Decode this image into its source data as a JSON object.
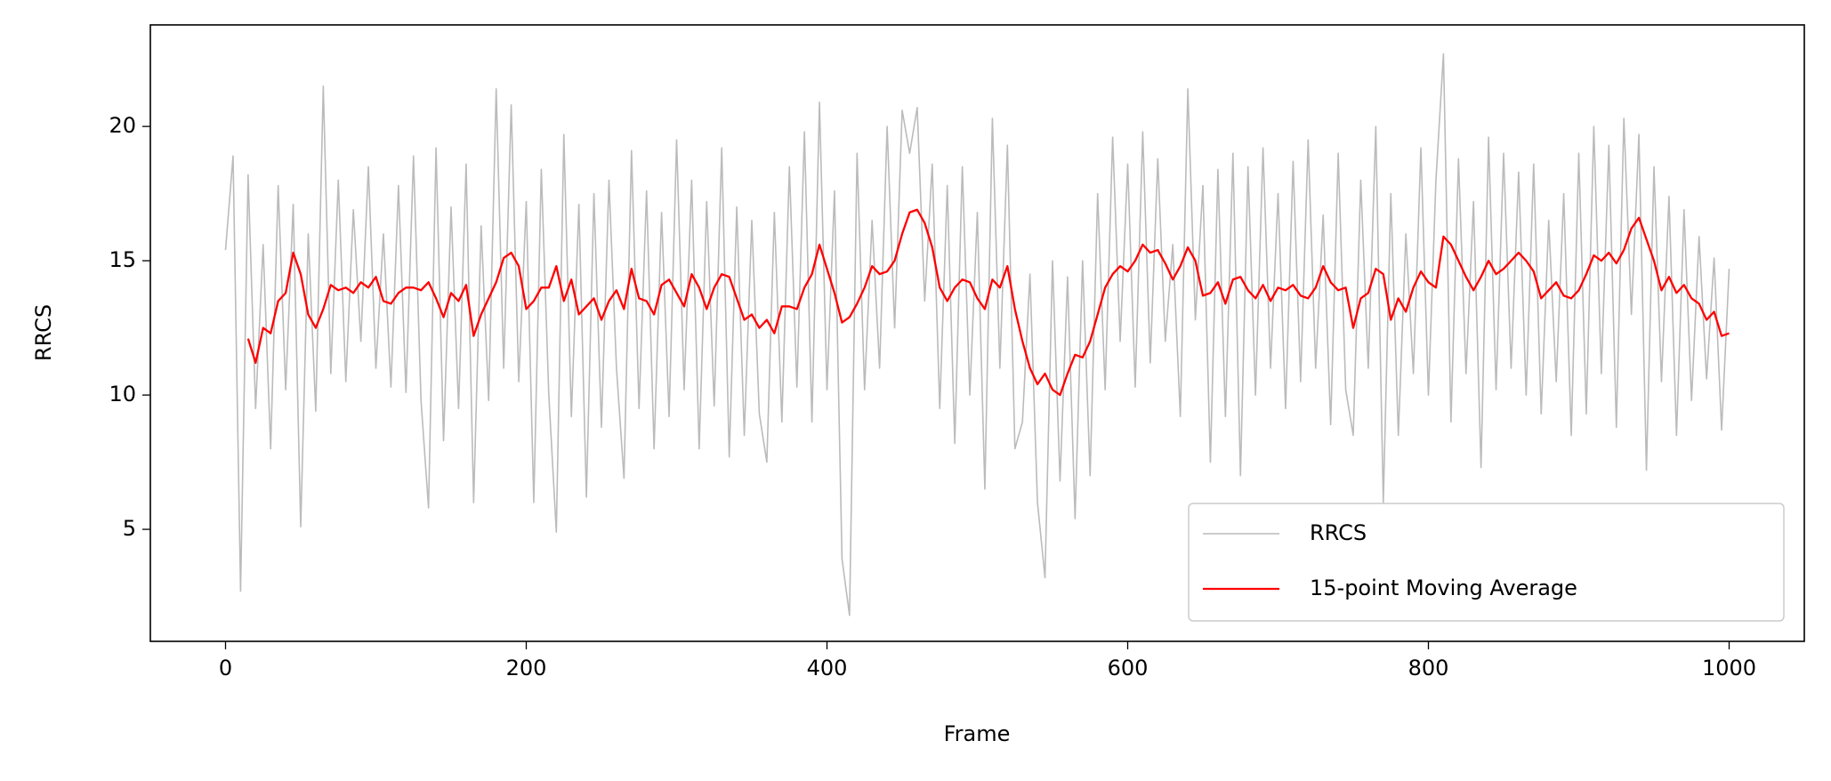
{
  "chart_data": {
    "type": "line",
    "x_label": "Frame",
    "y_label": "RRCS",
    "xlim": [
      -50,
      1050
    ],
    "ylim": [
      0.83,
      23.78
    ],
    "xticks": [
      0,
      200,
      400,
      600,
      800,
      1000
    ],
    "yticks": [
      5,
      10,
      15,
      20
    ],
    "grid": false,
    "legend": "lower right",
    "series": [
      {
        "name": "RRCS",
        "color": "#bbbbbb",
        "x": [
          0,
          5,
          10,
          15,
          20,
          25,
          30,
          35,
          40,
          45,
          50,
          55,
          60,
          65,
          70,
          75,
          80,
          85,
          90,
          95,
          100,
          105,
          110,
          115,
          120,
          125,
          130,
          135,
          140,
          145,
          150,
          155,
          160,
          165,
          170,
          175,
          180,
          185,
          190,
          195,
          200,
          205,
          210,
          215,
          220,
          225,
          230,
          235,
          240,
          245,
          250,
          255,
          260,
          265,
          270,
          275,
          280,
          285,
          290,
          295,
          300,
          305,
          310,
          315,
          320,
          325,
          330,
          335,
          340,
          345,
          350,
          355,
          360,
          365,
          370,
          375,
          380,
          385,
          390,
          395,
          400,
          405,
          410,
          415,
          420,
          425,
          430,
          435,
          440,
          445,
          450,
          455,
          460,
          465,
          470,
          475,
          480,
          485,
          490,
          495,
          500,
          505,
          510,
          515,
          520,
          525,
          530,
          535,
          540,
          545,
          550,
          555,
          560,
          565,
          570,
          575,
          580,
          585,
          590,
          595,
          600,
          605,
          610,
          615,
          620,
          625,
          630,
          635,
          640,
          645,
          650,
          655,
          660,
          665,
          670,
          675,
          680,
          685,
          690,
          695,
          700,
          705,
          710,
          715,
          720,
          725,
          730,
          735,
          740,
          745,
          750,
          755,
          760,
          765,
          770,
          775,
          780,
          785,
          790,
          795,
          800,
          805,
          810,
          815,
          820,
          825,
          830,
          835,
          840,
          845,
          850,
          855,
          860,
          865,
          870,
          875,
          880,
          885,
          890,
          895,
          900,
          905,
          910,
          915,
          920,
          925,
          930,
          935,
          940,
          945,
          950,
          955,
          960,
          965,
          970,
          975,
          980,
          985,
          990,
          995,
          1000
        ],
        "values": [
          15.4,
          18.9,
          2.7,
          18.2,
          9.5,
          15.6,
          8.0,
          17.8,
          10.2,
          17.1,
          5.1,
          16.0,
          9.4,
          21.5,
          10.8,
          18.0,
          10.5,
          16.9,
          12.0,
          18.5,
          11.0,
          16.0,
          10.3,
          17.8,
          10.1,
          18.9,
          9.8,
          5.8,
          19.2,
          8.3,
          17.0,
          9.5,
          18.6,
          6.0,
          16.3,
          9.8,
          21.4,
          11.0,
          20.8,
          10.5,
          17.2,
          6.0,
          18.4,
          10.0,
          4.9,
          19.7,
          9.2,
          17.1,
          6.2,
          17.5,
          8.8,
          18.0,
          11.0,
          6.9,
          19.1,
          9.5,
          17.6,
          8.0,
          16.8,
          9.2,
          19.5,
          10.2,
          18.0,
          8.0,
          17.2,
          9.6,
          19.2,
          7.7,
          17.0,
          8.5,
          16.5,
          9.3,
          7.5,
          16.8,
          9.0,
          18.5,
          10.3,
          19.8,
          9.0,
          20.9,
          10.2,
          17.6,
          3.9,
          1.8,
          19.0,
          10.2,
          16.5,
          11.0,
          20.0,
          12.5,
          20.6,
          19.0,
          20.7,
          13.5,
          18.6,
          9.5,
          17.8,
          8.2,
          18.5,
          10.0,
          16.8,
          6.5,
          20.3,
          11.0,
          19.3,
          8.0,
          9.0,
          14.5,
          6.0,
          3.2,
          15.0,
          6.8,
          14.4,
          5.4,
          15.0,
          7.0,
          17.5,
          10.2,
          19.6,
          12.0,
          18.6,
          10.3,
          19.8,
          11.2,
          18.8,
          12.0,
          15.6,
          9.2,
          21.4,
          12.8,
          17.8,
          7.5,
          18.4,
          9.2,
          19.0,
          7.0,
          18.5,
          10.0,
          19.2,
          11.0,
          17.5,
          9.5,
          18.7,
          10.5,
          19.5,
          11.0,
          16.7,
          8.9,
          19.0,
          10.2,
          8.5,
          18.0,
          11.0,
          20.0,
          6.0,
          17.5,
          8.5,
          16.0,
          10.8,
          19.2,
          10.0,
          18.0,
          22.7,
          9.0,
          18.8,
          10.8,
          17.2,
          7.3,
          19.6,
          10.2,
          19.0,
          11.0,
          18.3,
          10.0,
          18.6,
          9.3,
          16.5,
          10.5,
          17.5,
          8.5,
          19.0,
          9.3,
          20.0,
          10.8,
          19.3,
          8.8,
          20.3,
          13.0,
          19.7,
          7.2,
          18.5,
          10.5,
          17.4,
          8.5,
          16.9,
          9.8,
          15.9,
          10.6,
          15.1,
          8.7,
          14.7
        ]
      },
      {
        "name": "15-point Moving Average",
        "color": "#ff0000",
        "x": [
          15,
          20,
          25,
          30,
          35,
          40,
          45,
          50,
          55,
          60,
          65,
          70,
          75,
          80,
          85,
          90,
          95,
          100,
          105,
          110,
          115,
          120,
          125,
          130,
          135,
          140,
          145,
          150,
          155,
          160,
          165,
          170,
          175,
          180,
          185,
          190,
          195,
          200,
          205,
          210,
          215,
          220,
          225,
          230,
          235,
          240,
          245,
          250,
          255,
          260,
          265,
          270,
          275,
          280,
          285,
          290,
          295,
          300,
          305,
          310,
          315,
          320,
          325,
          330,
          335,
          340,
          345,
          350,
          355,
          360,
          365,
          370,
          375,
          380,
          385,
          390,
          395,
          400,
          405,
          410,
          415,
          420,
          425,
          430,
          435,
          440,
          445,
          450,
          455,
          460,
          465,
          470,
          475,
          480,
          485,
          490,
          495,
          500,
          505,
          510,
          515,
          520,
          525,
          530,
          535,
          540,
          545,
          550,
          555,
          560,
          565,
          570,
          575,
          580,
          585,
          590,
          595,
          600,
          605,
          610,
          615,
          620,
          625,
          630,
          635,
          640,
          645,
          650,
          655,
          660,
          665,
          670,
          675,
          680,
          685,
          690,
          695,
          700,
          705,
          710,
          715,
          720,
          725,
          730,
          735,
          740,
          745,
          750,
          755,
          760,
          765,
          770,
          775,
          780,
          785,
          790,
          795,
          800,
          805,
          810,
          815,
          820,
          825,
          830,
          835,
          840,
          845,
          850,
          855,
          860,
          865,
          870,
          875,
          880,
          885,
          890,
          895,
          900,
          905,
          910,
          915,
          920,
          925,
          930,
          935,
          940,
          945,
          950,
          955,
          960,
          965,
          970,
          975,
          980,
          985,
          990,
          995,
          1000
        ],
        "values": [
          12.1,
          11.2,
          12.5,
          12.3,
          13.5,
          13.8,
          15.3,
          14.5,
          13.0,
          12.5,
          13.2,
          14.1,
          13.9,
          14.0,
          13.8,
          14.2,
          14.0,
          14.4,
          13.5,
          13.4,
          13.8,
          14.0,
          14.0,
          13.9,
          14.2,
          13.6,
          12.9,
          13.8,
          13.5,
          14.1,
          12.2,
          13.0,
          13.6,
          14.2,
          15.1,
          15.3,
          14.8,
          13.2,
          13.5,
          14.0,
          14.0,
          14.8,
          13.5,
          14.3,
          13.0,
          13.3,
          13.6,
          12.8,
          13.5,
          13.9,
          13.2,
          14.7,
          13.6,
          13.5,
          13.0,
          14.1,
          14.3,
          13.8,
          13.3,
          14.5,
          14.0,
          13.2,
          14.0,
          14.5,
          14.4,
          13.6,
          12.8,
          13.0,
          12.5,
          12.8,
          12.3,
          13.3,
          13.3,
          13.2,
          14.0,
          14.5,
          15.6,
          14.7,
          13.8,
          12.7,
          12.9,
          13.4,
          14.0,
          14.8,
          14.5,
          14.6,
          15.0,
          16.0,
          16.8,
          16.9,
          16.4,
          15.5,
          14.0,
          13.5,
          14.0,
          14.3,
          14.2,
          13.6,
          13.2,
          14.3,
          14.0,
          14.8,
          13.2,
          12.0,
          11.0,
          10.4,
          10.8,
          10.2,
          10.0,
          10.8,
          11.5,
          11.4,
          12.0,
          13.0,
          14.0,
          14.5,
          14.8,
          14.6,
          15.0,
          15.6,
          15.3,
          15.4,
          14.9,
          14.3,
          14.8,
          15.5,
          15.0,
          13.7,
          13.8,
          14.2,
          13.4,
          14.3,
          14.4,
          13.9,
          13.6,
          14.1,
          13.5,
          14.0,
          13.9,
          14.1,
          13.7,
          13.6,
          14.0,
          14.8,
          14.2,
          13.9,
          14.0,
          12.5,
          13.6,
          13.8,
          14.7,
          14.5,
          12.8,
          13.6,
          13.1,
          14.0,
          14.6,
          14.2,
          14.0,
          15.9,
          15.6,
          15.0,
          14.4,
          13.9,
          14.4,
          15.0,
          14.5,
          14.7,
          15.0,
          15.3,
          15.0,
          14.6,
          13.6,
          13.9,
          14.2,
          13.7,
          13.6,
          13.9,
          14.5,
          15.2,
          15.0,
          15.3,
          14.9,
          15.4,
          16.2,
          16.6,
          15.8,
          15.0,
          13.9,
          14.4,
          13.8,
          14.1,
          13.6,
          13.4,
          12.8,
          13.1,
          12.2,
          12.3
        ]
      }
    ]
  }
}
